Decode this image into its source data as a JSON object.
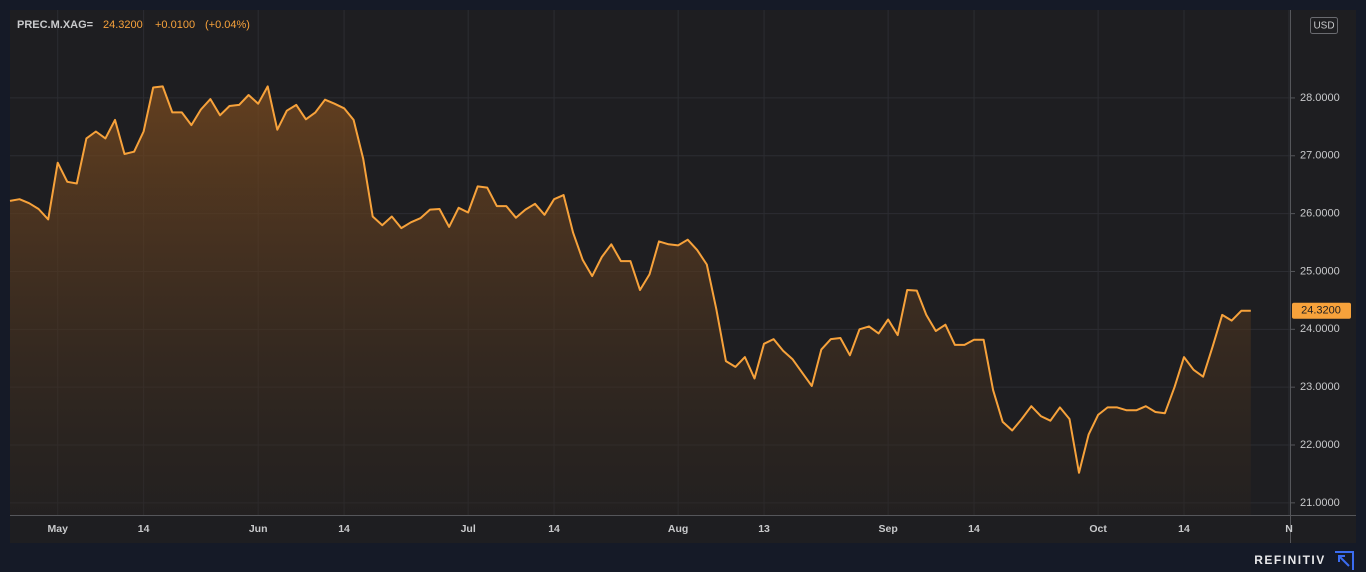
{
  "chart_data": {
    "type": "area",
    "symbol": "PREC.M.XAG=",
    "change": "+0.0100",
    "change_pct": "(+0.04%)",
    "currency": "USD",
    "brand": "REFINITIV",
    "last": {
      "value": 24.32,
      "label": "24.3200"
    },
    "color": "#f7a23b",
    "grid": true,
    "categories": [
      null,
      null,
      null,
      null,
      null,
      "May",
      null,
      null,
      null,
      null,
      null,
      null,
      null,
      null,
      "14",
      null,
      null,
      null,
      null,
      null,
      null,
      null,
      null,
      null,
      null,
      null,
      "Jun",
      null,
      null,
      null,
      null,
      null,
      null,
      null,
      null,
      "14",
      null,
      null,
      null,
      null,
      null,
      null,
      null,
      null,
      null,
      null,
      null,
      null,
      "Jul",
      null,
      null,
      null,
      null,
      null,
      null,
      null,
      null,
      "14",
      null,
      null,
      null,
      null,
      null,
      null,
      null,
      null,
      null,
      null,
      null,
      null,
      "Aug",
      null,
      null,
      null,
      null,
      null,
      null,
      null,
      null,
      "13",
      null,
      null,
      null,
      null,
      null,
      null,
      null,
      null,
      null,
      null,
      null,
      null,
      "Sep",
      null,
      null,
      null,
      null,
      null,
      null,
      null,
      null,
      "14",
      null,
      null,
      null,
      null,
      null,
      null,
      null,
      null,
      null,
      null,
      null,
      null,
      "Oct",
      null,
      null,
      null,
      null,
      null,
      null,
      null,
      null,
      "14",
      null,
      null,
      null,
      null,
      null,
      null,
      null,
      null,
      null,
      null,
      "N"
    ],
    "values": [
      26.22,
      26.25,
      26.18,
      26.08,
      25.9,
      26.88,
      26.55,
      26.52,
      27.3,
      27.42,
      27.3,
      27.62,
      27.03,
      27.07,
      27.42,
      28.18,
      28.2,
      27.75,
      27.75,
      27.53,
      27.8,
      27.98,
      27.7,
      27.86,
      27.88,
      28.05,
      27.9,
      28.2,
      27.45,
      27.78,
      27.88,
      27.63,
      27.75,
      27.97,
      27.9,
      27.82,
      27.62,
      26.95,
      25.95,
      25.8,
      25.95,
      25.75,
      25.85,
      25.92,
      26.07,
      26.08,
      25.77,
      26.1,
      26.02,
      26.47,
      26.45,
      26.13,
      26.13,
      25.93,
      26.07,
      26.17,
      25.98,
      26.25,
      26.32,
      25.67,
      25.2,
      24.92,
      25.25,
      25.47,
      25.18,
      25.18,
      24.68,
      24.95,
      25.52,
      25.47,
      25.45,
      25.55,
      25.37,
      25.12,
      24.35,
      23.45,
      23.35,
      23.52,
      23.15,
      23.75,
      23.83,
      23.63,
      23.48,
      23.25,
      23.02,
      23.65,
      23.83,
      23.85,
      23.55,
      24.0,
      24.05,
      23.93,
      24.17,
      23.9,
      24.68,
      24.67,
      24.25,
      23.97,
      24.08,
      23.73,
      23.73,
      23.82,
      23.82,
      22.95,
      22.4,
      22.25,
      22.45,
      22.67,
      22.5,
      22.42,
      22.65,
      22.45,
      21.52,
      22.18,
      22.52,
      22.65,
      22.65,
      22.6,
      22.6,
      22.67,
      22.57,
      22.55,
      23.0,
      23.52,
      23.3,
      23.18,
      23.7,
      24.25,
      24.15,
      24.32,
      24.32,
      null,
      null,
      null,
      null
    ],
    "ylim": [
      20.79,
      29.52
    ],
    "yticks": [
      {
        "value": 21,
        "label": "21.0000"
      },
      {
        "value": 22,
        "label": "22.0000"
      },
      {
        "value": 23,
        "label": "23.0000"
      },
      {
        "value": 24,
        "label": "24.0000"
      },
      {
        "value": 25,
        "label": "25.0000"
      },
      {
        "value": 26,
        "label": "26.0000"
      },
      {
        "value": 27,
        "label": "27.0000"
      },
      {
        "value": 28,
        "label": "28.0000"
      }
    ]
  }
}
